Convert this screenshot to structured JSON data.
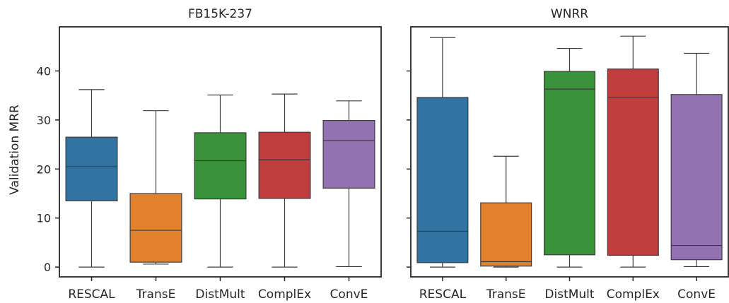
{
  "chart_data": {
    "type": "box",
    "ylabel": "Validation MRR",
    "ylim": [
      -2,
      49
    ],
    "yticks": [
      0,
      10,
      20,
      30,
      40
    ],
    "categories": [
      "RESCAL",
      "TransE",
      "DistMult",
      "ComplEx",
      "ConvE"
    ],
    "colors": [
      "#3274a1",
      "#e1812c",
      "#3a923a",
      "#c03d3e",
      "#9372b2"
    ],
    "panels": [
      {
        "title": "FB15K-237",
        "boxes": [
          {
            "min": 0,
            "q1": 13.5,
            "median": 20.5,
            "q3": 26.5,
            "max": 36.2
          },
          {
            "min": 0.6,
            "q1": 1.0,
            "median": 7.5,
            "q3": 15.0,
            "max": 31.9
          },
          {
            "min": 0,
            "q1": 13.9,
            "median": 21.7,
            "q3": 27.4,
            "max": 35.1
          },
          {
            "min": 0,
            "q1": 14.0,
            "median": 21.9,
            "q3": 27.5,
            "max": 35.3
          },
          {
            "min": 0.1,
            "q1": 16.1,
            "median": 25.8,
            "q3": 29.9,
            "max": 33.9
          }
        ]
      },
      {
        "title": "WNRR",
        "boxes": [
          {
            "min": 0,
            "q1": 0.9,
            "median": 7.3,
            "q3": 34.6,
            "max": 46.8
          },
          {
            "min": 0,
            "q1": 0.2,
            "median": 1.1,
            "q3": 13.1,
            "max": 22.6
          },
          {
            "min": 0,
            "q1": 2.5,
            "median": 36.3,
            "q3": 39.9,
            "max": 44.6
          },
          {
            "min": 0,
            "q1": 2.4,
            "median": 34.6,
            "q3": 40.4,
            "max": 47.1
          },
          {
            "min": 0.1,
            "q1": 1.5,
            "median": 4.4,
            "q3": 35.2,
            "max": 43.6
          }
        ]
      }
    ]
  }
}
